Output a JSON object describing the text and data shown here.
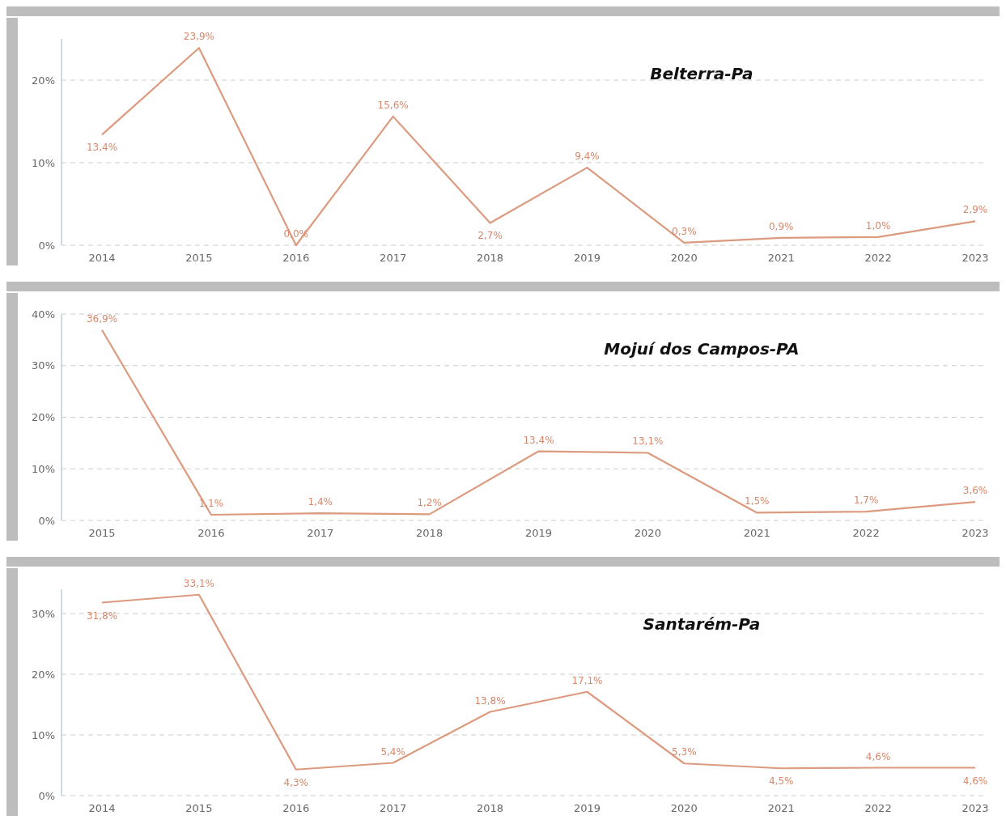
{
  "chart_data": [
    {
      "type": "line",
      "title": "Belterra-Pa",
      "categories": [
        "2014",
        "2015",
        "2016",
        "2017",
        "2018",
        "2019",
        "2020",
        "2021",
        "2022",
        "2023"
      ],
      "series": [
        {
          "color": "#dc9a7e",
          "values": [
            13.4,
            23.9,
            0.0,
            15.6,
            2.7,
            9.4,
            0.3,
            0.9,
            1.0,
            2.9
          ],
          "value_labels": [
            "13,4%",
            "23,9%",
            "0,0%",
            "15,6%",
            "2,7%",
            "9,4%",
            "0,3%",
            "0,9%",
            "1,0%",
            "2,9%"
          ]
        }
      ],
      "ylim": [
        0,
        25
      ],
      "yticks": [
        {
          "value": 0,
          "label": "0%"
        },
        {
          "value": 10,
          "label": "10%"
        },
        {
          "value": 20,
          "label": "20%"
        }
      ],
      "grid": "y",
      "marker": "none",
      "line_style": "solid"
    },
    {
      "type": "line",
      "title": "Mojuí dos Campos-PA",
      "categories": [
        "2015",
        "2016",
        "2017",
        "2018",
        "2019",
        "2020",
        "2021",
        "2022",
        "2023"
      ],
      "series": [
        {
          "color": "#dc9a7e",
          "values": [
            36.9,
            1.1,
            1.4,
            1.2,
            13.4,
            13.1,
            1.5,
            1.7,
            3.6
          ],
          "value_labels": [
            "36,9%",
            "1,1%",
            "1,4%",
            "1,2%",
            "13,4%",
            "13,1%",
            "1,5%",
            "1,7%",
            "3,6%"
          ]
        }
      ],
      "ylim": [
        0,
        40
      ],
      "yticks": [
        {
          "value": 0,
          "label": "0%"
        },
        {
          "value": 10,
          "label": "10%"
        },
        {
          "value": 20,
          "label": "20%"
        },
        {
          "value": 30,
          "label": "30%"
        },
        {
          "value": 40,
          "label": "40%"
        }
      ],
      "grid": "y",
      "marker": "none",
      "line_style": "solid"
    },
    {
      "type": "line",
      "title": "Santarém-Pa",
      "categories": [
        "2014",
        "2015",
        "2016",
        "2017",
        "2018",
        "2019",
        "2020",
        "2021",
        "2022",
        "2023"
      ],
      "series": [
        {
          "color": "#dc9a7e",
          "values": [
            31.8,
            33.1,
            4.3,
            5.4,
            13.8,
            17.1,
            5.3,
            4.5,
            4.6,
            4.6
          ],
          "value_labels": [
            "31,8%",
            "33,1%",
            "4,3%",
            "5,4%",
            "13,8%",
            "17,1%",
            "5,3%",
            "4,5%",
            "4,6%",
            "4,6%"
          ]
        }
      ],
      "ylim": [
        0,
        34
      ],
      "yticks": [
        {
          "value": 0,
          "label": "0%"
        },
        {
          "value": 10,
          "label": "10%"
        },
        {
          "value": 20,
          "label": "20%"
        },
        {
          "value": 30,
          "label": "30%"
        }
      ],
      "grid": "y",
      "marker": "none",
      "line_style": "solid"
    }
  ]
}
